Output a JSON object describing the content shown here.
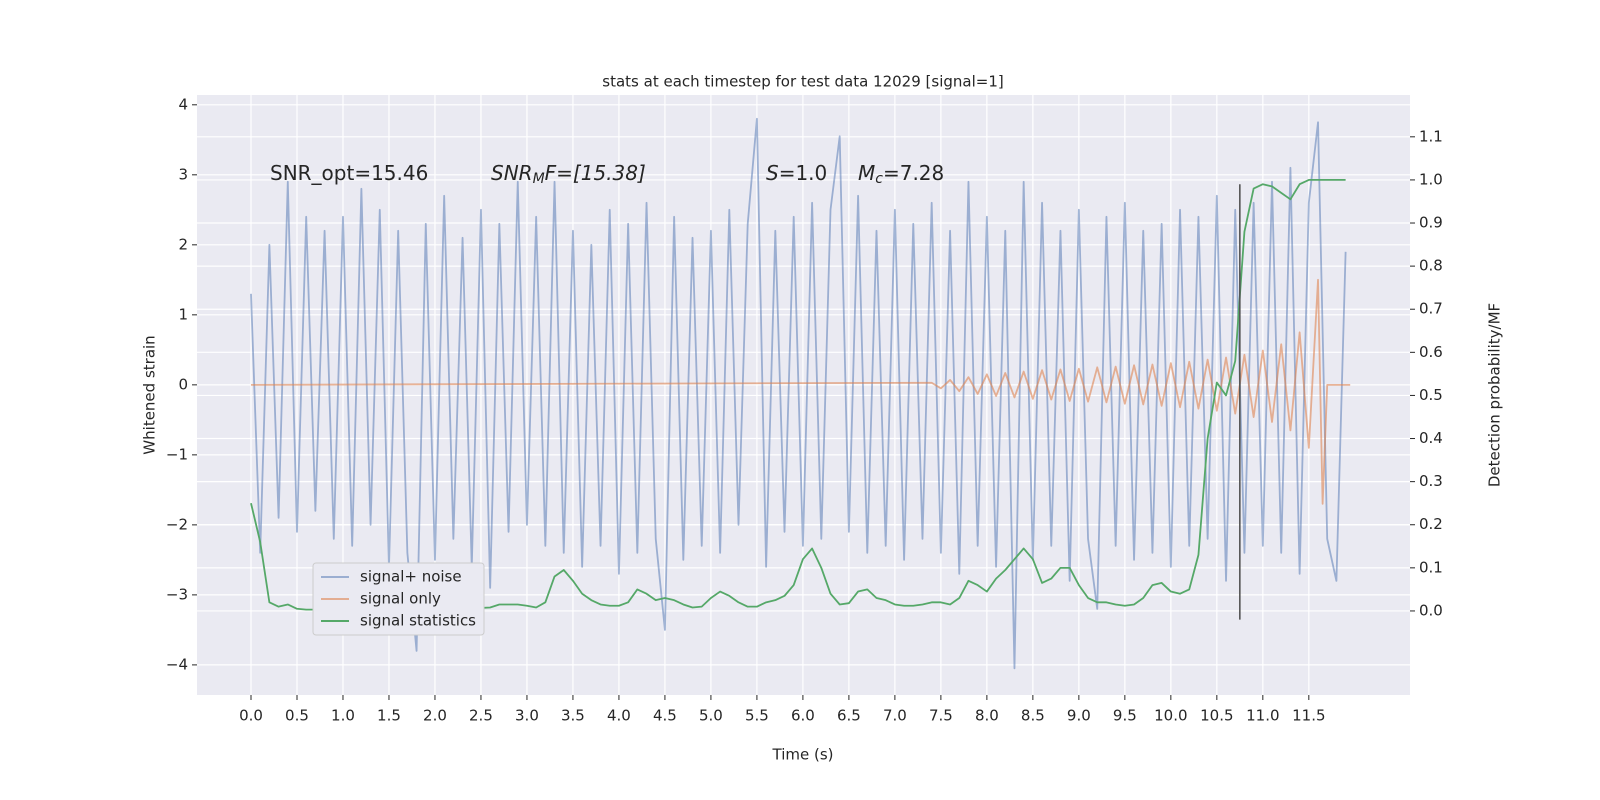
{
  "chart_data": {
    "type": "line",
    "title": "stats at each timestep for test data 12029 [signal=1]",
    "x_label": "Time (s)",
    "y_label": "Whitened strain",
    "y2_label": "Detection probability/MF",
    "xlim": [
      -0.587,
      12.6
    ],
    "ylim": [
      -4.43,
      4.14
    ],
    "y2lim": [
      -0.195,
      1.197
    ],
    "xticks": [
      {
        "value": 0,
        "label": "0.0"
      },
      0.5,
      {
        "value": 1,
        "label": "1.0"
      },
      1.5,
      {
        "value": 2,
        "label": "2.0"
      },
      2.5,
      {
        "value": 3,
        "label": "3.0"
      },
      3.5,
      {
        "value": 4,
        "label": "4.0"
      },
      4.5,
      {
        "value": 5,
        "label": "5.0"
      },
      5.5,
      {
        "value": 6,
        "label": "6.0"
      },
      6.5,
      {
        "value": 7,
        "label": "7.0"
      },
      7.5,
      {
        "value": 8,
        "label": "8.0"
      },
      8.5,
      {
        "value": 9,
        "label": "9.0"
      },
      9.5,
      {
        "value": 10,
        "label": "10.0"
      },
      10.5,
      {
        "value": 11,
        "label": "11.0"
      },
      11.5
    ],
    "yticks": [
      {
        "value": -4,
        "label": "−4"
      },
      {
        "value": -3,
        "label": "−3"
      },
      {
        "value": -2,
        "label": "−2"
      },
      {
        "value": -1,
        "label": "−1"
      },
      0,
      1,
      2,
      3,
      4
    ],
    "y2ticks": [
      {
        "value": 0,
        "label": "0.0"
      },
      0.1,
      0.2,
      0.3,
      0.4,
      0.5,
      0.6,
      0.7,
      0.8,
      0.9,
      {
        "value": 1,
        "label": "1.0"
      },
      1.1
    ],
    "grid": true,
    "legend": "lower left",
    "annotations": [
      [
        "SNR_opt=15.46"
      ],
      [
        "SNR",
        "M",
        "F=[15.38]"
      ],
      [
        "S",
        "=1.0"
      ],
      [
        "M",
        "c",
        "=7.28"
      ]
    ],
    "vline": {
      "x": 10.75,
      "y2": [
        -0.02,
        0.99
      ],
      "color": "#555555"
    },
    "x": [
      0,
      0.1,
      0.2,
      0.3,
      0.4,
      0.5,
      0.6,
      0.7,
      0.8,
      0.9,
      1,
      1.1,
      1.2,
      1.3,
      1.4,
      1.5,
      1.6,
      1.7,
      1.8,
      1.9,
      2,
      2.1,
      2.2,
      2.3,
      2.4,
      2.5,
      2.6,
      2.7,
      2.8,
      2.9,
      3,
      3.1,
      3.2,
      3.3,
      3.4,
      3.5,
      3.6,
      3.7,
      3.8,
      3.9,
      4,
      4.1,
      4.2,
      4.3,
      4.4,
      4.5,
      4.6,
      4.7,
      4.8,
      4.9,
      5,
      5.1,
      5.2,
      5.3,
      5.4,
      5.5,
      5.6,
      5.7,
      5.8,
      5.9,
      6,
      6.1,
      6.2,
      6.3,
      6.4,
      6.5,
      6.6,
      6.7,
      6.8,
      6.9,
      7,
      7.1,
      7.2,
      7.3,
      7.4,
      7.5,
      7.6,
      7.7,
      7.8,
      7.9,
      8,
      8.1,
      8.2,
      8.3,
      8.4,
      8.5,
      8.6,
      8.7,
      8.8,
      8.9,
      9,
      9.1,
      9.2,
      9.3,
      9.4,
      9.5,
      9.6,
      9.7,
      9.8,
      9.9,
      10,
      10.1,
      10.2,
      10.3,
      10.4,
      10.5,
      10.6,
      10.7,
      10.8,
      10.9,
      11,
      11.1,
      11.2,
      11.3,
      11.4,
      11.5,
      11.6,
      11.7,
      11.8,
      11.9
    ],
    "series": [
      {
        "name": "signal+ noise",
        "color": "#4c72b0",
        "opacity": 0.5,
        "values": [
          1.3,
          -2.4,
          2.0,
          -1.9,
          2.9,
          -2.1,
          2.4,
          -1.8,
          2.2,
          -2.2,
          2.4,
          -2.3,
          2.8,
          -2.0,
          2.5,
          -2.6,
          2.2,
          -2.4,
          -3.8,
          2.3,
          -2.5,
          2.7,
          -2.2,
          2.1,
          -2.6,
          2.5,
          -2.9,
          2.3,
          -2.1,
          2.9,
          -2.0,
          2.4,
          -2.3,
          2.9,
          -2.4,
          2.2,
          -2.6,
          2.0,
          -2.3,
          2.5,
          -2.7,
          2.3,
          -2.4,
          2.6,
          -2.2,
          -3.5,
          2.4,
          -2.5,
          2.1,
          -2.3,
          2.2,
          -2.4,
          2.5,
          -2.0,
          2.3,
          3.8,
          -2.6,
          2.2,
          -2.1,
          2.4,
          -2.3,
          2.6,
          -2.2,
          2.5,
          3.55,
          -2.1,
          2.7,
          -2.4,
          2.2,
          -2.3,
          2.5,
          -2.5,
          2.3,
          -2.2,
          2.6,
          -2.4,
          2.2,
          -2.7,
          2.9,
          -2.3,
          2.4,
          -2.6,
          2.2,
          -4.05,
          2.9,
          -2.5,
          2.6,
          -2.3,
          2.2,
          -2.8,
          2.5,
          -2.2,
          -3.2,
          2.4,
          -2.3,
          2.6,
          -2.5,
          2.2,
          -2.4,
          2.3,
          -2.6,
          2.5,
          -2.3,
          2.4,
          -2.2,
          2.7,
          -2.8,
          2.5,
          -2.4,
          2.6,
          -2.3,
          2.9,
          -2.4,
          3.1,
          -2.7,
          2.6,
          3.75,
          -2.2,
          -2.8,
          1.9
        ]
      },
      {
        "name": "signal only",
        "color": "#dd8452",
        "opacity": 0.6,
        "x": [
          0,
          7.4,
          7.5,
          7.6,
          7.7,
          7.8,
          7.9,
          8,
          8.1,
          8.2,
          8.3,
          8.4,
          8.5,
          8.6,
          8.7,
          8.8,
          8.9,
          9,
          9.1,
          9.2,
          9.3,
          9.4,
          9.5,
          9.6,
          9.7,
          9.8,
          9.9,
          10,
          10.1,
          10.2,
          10.3,
          10.4,
          10.5,
          10.6,
          10.7,
          10.8,
          10.9,
          11,
          11.1,
          11.2,
          11.3,
          11.4,
          11.5,
          11.6,
          11.65,
          11.7,
          11.95
        ],
        "values": [
          0,
          0.03,
          -0.05,
          0.07,
          -0.09,
          0.11,
          -0.13,
          0.15,
          -0.16,
          0.17,
          -0.18,
          0.19,
          -0.2,
          0.21,
          -0.21,
          0.22,
          -0.23,
          0.23,
          -0.24,
          0.25,
          -0.25,
          0.26,
          -0.27,
          0.28,
          -0.28,
          0.29,
          -0.3,
          0.31,
          -0.32,
          0.33,
          -0.34,
          0.36,
          -0.37,
          0.39,
          -0.41,
          0.43,
          -0.46,
          0.49,
          -0.53,
          0.58,
          -0.65,
          0.75,
          -0.9,
          1.5,
          -1.7,
          0,
          0
        ]
      },
      {
        "name": "signal statistics",
        "color": "#55a868",
        "opacity": 1,
        "axis": "y2",
        "values": [
          0.25,
          0.16,
          0.02,
          0.01,
          0.015,
          0.005,
          0.003,
          0.003,
          0.004,
          0.003,
          0.003,
          0.004,
          0.007,
          0.006,
          0.008,
          0.012,
          0.01,
          0.008,
          0.01,
          0.012,
          0.01,
          0.016,
          0.014,
          0.012,
          0.01,
          0.007,
          0.008,
          0.015,
          0.015,
          0.015,
          0.012,
          0.008,
          0.02,
          0.08,
          0.095,
          0.07,
          0.04,
          0.025,
          0.015,
          0.012,
          0.012,
          0.02,
          0.05,
          0.04,
          0.025,
          0.03,
          0.025,
          0.015,
          0.008,
          0.01,
          0.03,
          0.045,
          0.035,
          0.02,
          0.01,
          0.01,
          0.02,
          0.025,
          0.035,
          0.06,
          0.12,
          0.145,
          0.1,
          0.04,
          0.015,
          0.018,
          0.045,
          0.05,
          0.03,
          0.025,
          0.015,
          0.012,
          0.012,
          0.015,
          0.02,
          0.02,
          0.015,
          0.03,
          0.07,
          0.06,
          0.045,
          0.075,
          0.095,
          0.12,
          0.145,
          0.12,
          0.065,
          0.075,
          0.1,
          0.1,
          0.06,
          0.03,
          0.02,
          0.02,
          0.015,
          0.012,
          0.015,
          0.03,
          0.06,
          0.065,
          0.045,
          0.04,
          0.05,
          0.13,
          0.4,
          0.53,
          0.5,
          0.58,
          0.88,
          0.98,
          0.99,
          0.985,
          0.97,
          0.955,
          0.99,
          1,
          1,
          1,
          1,
          1
        ]
      }
    ]
  }
}
